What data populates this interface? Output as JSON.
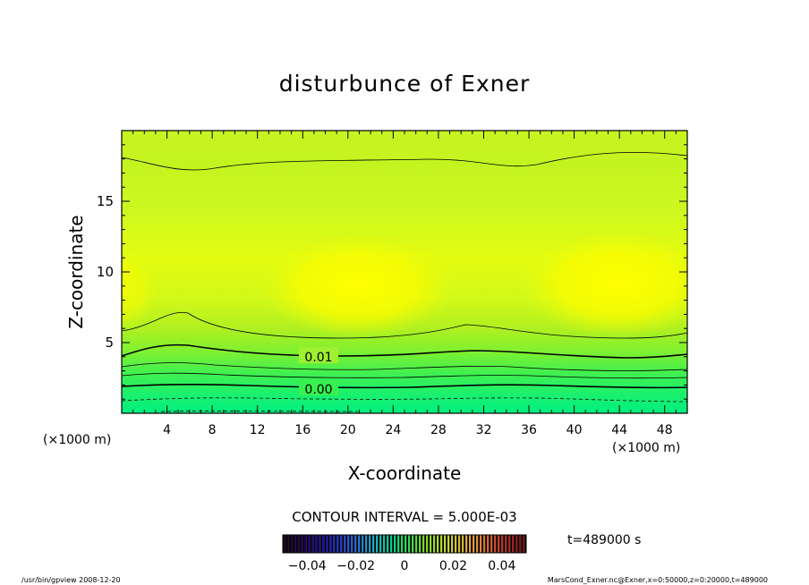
{
  "chart_data": {
    "type": "heatmap",
    "title": "disturbunce of Exner",
    "xlabel": "X-coordinate",
    "ylabel": "Z-coordinate",
    "x_unit_left": "(×1000 m)",
    "x_unit_right": "(×1000 m)",
    "xlim": [
      0,
      50
    ],
    "ylim": [
      0,
      20
    ],
    "x_ticks": [
      4,
      8,
      12,
      16,
      20,
      24,
      28,
      32,
      36,
      40,
      44,
      48
    ],
    "y_ticks": [
      5,
      10,
      15
    ],
    "contour_labels": [
      {
        "text": "0.01",
        "x": 17.6,
        "y": 4.0
      },
      {
        "text": "0.00",
        "x": 17.6,
        "y": 1.8
      }
    ],
    "contour_interval": "CONTOUR INTERVAL = 5.000E-03",
    "time_label": "t=489000 s",
    "colorbar": {
      "range": [
        -0.05,
        0.05
      ],
      "tick_labels": [
        "−0.04",
        "−0.02",
        "0",
        "0.02",
        "0.04"
      ],
      "tick_values": [
        -0.04,
        -0.02,
        0,
        0.02,
        0.04
      ]
    },
    "grid": false
  },
  "footer": {
    "left": "/usr/bin/gpview  2008-12-20",
    "right": "MarsCond_Exner.nc@Exner,x=0:50000,z=0:20000,t=489000"
  }
}
